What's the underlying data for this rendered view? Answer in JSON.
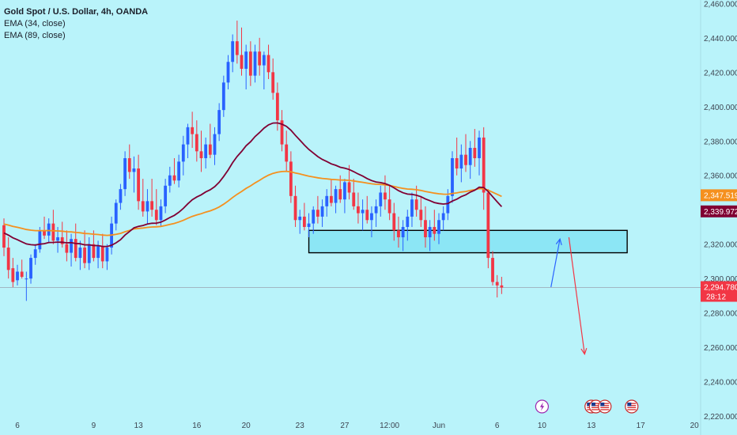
{
  "chart_data": {
    "type": "candlestick",
    "title": "Gold Spot / U.S. Dollar, 4h, OANDA",
    "indicators": [
      "EMA (34, close)",
      "EMA (89, close)"
    ],
    "colors": {
      "background": "#b9f3fa",
      "up": "#2962ff",
      "down": "#f23645",
      "ema34": "#800033",
      "ema89": "#f5901e",
      "zone_fill": "#8ce6f5",
      "price_line": "#9aa3b0"
    },
    "y_axis": {
      "range": [
        2209,
        2462
      ],
      "ticks": [
        "2,460.000",
        "2,440.000",
        "2,420.000",
        "2,400.000",
        "2,380.000",
        "2,360.000",
        "2,340.000",
        "2,320.000",
        "2,300.000",
        "2,280.000",
        "2,260.000",
        "2,240.000",
        "2,220.000"
      ]
    },
    "x_axis": {
      "ticks": [
        {
          "label": "6",
          "bar": 3
        },
        {
          "label": "9",
          "bar": 20
        },
        {
          "label": "13",
          "bar": 30
        },
        {
          "label": "16",
          "bar": 43
        },
        {
          "label": "20",
          "bar": 54
        },
        {
          "label": "23",
          "bar": 66
        },
        {
          "label": "27",
          "bar": 76
        },
        {
          "label": "12:00",
          "bar": 86
        },
        {
          "label": "Jun",
          "bar": 97
        },
        {
          "label": "6",
          "bar": 110
        },
        {
          "label": "10",
          "bar": 120
        },
        {
          "label": "13",
          "bar": 131
        },
        {
          "label": "17",
          "bar": 142
        },
        {
          "label": "20",
          "bar": 154
        }
      ]
    },
    "price_labels": [
      {
        "text": "2,347.519",
        "value": 2347.519,
        "color": "#f5901e"
      },
      {
        "text": "2,339.972",
        "value": 2339.972,
        "color": "#800033"
      },
      {
        "text": "2,294.780",
        "value": 2294.78,
        "color": "#f23645",
        "countdown": "28:12"
      }
    ],
    "zone": {
      "x_from_bar": 68,
      "x_to_bar": 139,
      "y_from": 2315,
      "y_to": 2328
    },
    "arrows": [
      {
        "from": [
          122,
          2295
        ],
        "to": [
          124,
          2323
        ],
        "color": "#2962ff"
      },
      {
        "from": [
          126,
          2324
        ],
        "to": [
          129.5,
          2256
        ],
        "color": "#f23645"
      }
    ],
    "events": [
      {
        "type": "lightning",
        "bar": 120
      },
      {
        "type": "us-flag",
        "bar": 131
      },
      {
        "type": "us-flag",
        "bar": 132
      },
      {
        "type": "us-flag",
        "bar": 134
      },
      {
        "type": "us-flag",
        "bar": 140
      }
    ],
    "candles": [
      [
        2331,
        2335,
        2313,
        2318
      ],
      [
        2318,
        2324,
        2300,
        2305
      ],
      [
        2306,
        2312,
        2295,
        2298
      ],
      [
        2299,
        2308,
        2296,
        2304
      ],
      [
        2304,
        2311,
        2300,
        2301
      ],
      [
        2300,
        2304,
        2287,
        2300
      ],
      [
        2300,
        2314,
        2297,
        2312
      ],
      [
        2312,
        2320,
        2308,
        2317
      ],
      [
        2317,
        2330,
        2315,
        2328
      ],
      [
        2328,
        2336,
        2323,
        2325
      ],
      [
        2325,
        2335,
        2321,
        2332
      ],
      [
        2332,
        2340,
        2320,
        2322
      ],
      [
        2322,
        2330,
        2315,
        2324
      ],
      [
        2324,
        2333,
        2318,
        2320
      ],
      [
        2320,
        2328,
        2310,
        2315
      ],
      [
        2315,
        2326,
        2307,
        2323
      ],
      [
        2323,
        2332,
        2310,
        2312
      ],
      [
        2312,
        2322,
        2305,
        2318
      ],
      [
        2318,
        2328,
        2306,
        2309
      ],
      [
        2309,
        2324,
        2305,
        2320
      ],
      [
        2320,
        2328,
        2310,
        2312
      ],
      [
        2312,
        2322,
        2306,
        2319
      ],
      [
        2319,
        2326,
        2306,
        2310
      ],
      [
        2310,
        2320,
        2305,
        2318
      ],
      [
        2318,
        2336,
        2314,
        2332
      ],
      [
        2332,
        2346,
        2328,
        2344
      ],
      [
        2344,
        2355,
        2340,
        2352
      ],
      [
        2352,
        2374,
        2348,
        2370
      ],
      [
        2370,
        2378,
        2358,
        2362
      ],
      [
        2362,
        2371,
        2350,
        2364
      ],
      [
        2364,
        2372,
        2340,
        2345
      ],
      [
        2345,
        2358,
        2336,
        2339
      ],
      [
        2339,
        2352,
        2332,
        2345
      ],
      [
        2345,
        2358,
        2336,
        2340
      ],
      [
        2340,
        2352,
        2331,
        2334
      ],
      [
        2334,
        2346,
        2330,
        2342
      ],
      [
        2342,
        2358,
        2338,
        2354
      ],
      [
        2354,
        2365,
        2350,
        2360
      ],
      [
        2360,
        2370,
        2355,
        2357
      ],
      [
        2357,
        2372,
        2353,
        2368
      ],
      [
        2368,
        2383,
        2360,
        2378
      ],
      [
        2378,
        2390,
        2370,
        2388
      ],
      [
        2388,
        2397,
        2376,
        2384
      ],
      [
        2384,
        2392,
        2368,
        2374
      ],
      [
        2374,
        2386,
        2362,
        2370
      ],
      [
        2370,
        2382,
        2364,
        2378
      ],
      [
        2378,
        2390,
        2370,
        2372
      ],
      [
        2372,
        2388,
        2366,
        2384
      ],
      [
        2384,
        2402,
        2380,
        2398
      ],
      [
        2398,
        2418,
        2394,
        2414
      ],
      [
        2414,
        2430,
        2410,
        2426
      ],
      [
        2426,
        2442,
        2420,
        2438
      ],
      [
        2438,
        2450,
        2425,
        2430
      ],
      [
        2430,
        2446,
        2418,
        2422
      ],
      [
        2422,
        2436,
        2410,
        2432
      ],
      [
        2432,
        2438,
        2412,
        2418
      ],
      [
        2418,
        2436,
        2414,
        2432
      ],
      [
        2432,
        2440,
        2418,
        2424
      ],
      [
        2424,
        2432,
        2410,
        2430
      ],
      [
        2430,
        2436,
        2416,
        2420
      ],
      [
        2420,
        2428,
        2404,
        2408
      ],
      [
        2408,
        2414,
        2386,
        2392
      ],
      [
        2392,
        2398,
        2374,
        2378
      ],
      [
        2378,
        2386,
        2362,
        2368
      ],
      [
        2368,
        2374,
        2344,
        2348
      ],
      [
        2348,
        2354,
        2330,
        2334
      ],
      [
        2334,
        2340,
        2326,
        2336
      ],
      [
        2336,
        2344,
        2328,
        2330
      ],
      [
        2330,
        2338,
        2324,
        2332
      ],
      [
        2332,
        2342,
        2326,
        2340
      ],
      [
        2340,
        2348,
        2332,
        2336
      ],
      [
        2336,
        2346,
        2330,
        2342
      ],
      [
        2342,
        2352,
        2336,
        2348
      ],
      [
        2348,
        2358,
        2342,
        2344
      ],
      [
        2344,
        2354,
        2338,
        2352
      ],
      [
        2352,
        2360,
        2344,
        2346
      ],
      [
        2346,
        2358,
        2338,
        2356
      ],
      [
        2356,
        2366,
        2346,
        2350
      ],
      [
        2350,
        2358,
        2340,
        2342
      ],
      [
        2342,
        2350,
        2332,
        2338
      ],
      [
        2338,
        2346,
        2328,
        2340
      ],
      [
        2340,
        2348,
        2332,
        2334
      ],
      [
        2334,
        2342,
        2324,
        2338
      ],
      [
        2338,
        2346,
        2330,
        2342
      ],
      [
        2342,
        2354,
        2336,
        2350
      ],
      [
        2350,
        2360,
        2340,
        2346
      ],
      [
        2346,
        2354,
        2334,
        2338
      ],
      [
        2338,
        2344,
        2322,
        2328
      ],
      [
        2328,
        2336,
        2318,
        2324
      ],
      [
        2324,
        2334,
        2316,
        2330
      ],
      [
        2330,
        2340,
        2322,
        2336
      ],
      [
        2336,
        2350,
        2330,
        2346
      ],
      [
        2346,
        2354,
        2336,
        2340
      ],
      [
        2340,
        2348,
        2330,
        2334
      ],
      [
        2334,
        2342,
        2318,
        2324
      ],
      [
        2324,
        2334,
        2316,
        2330
      ],
      [
        2330,
        2340,
        2322,
        2326
      ],
      [
        2326,
        2338,
        2320,
        2334
      ],
      [
        2334,
        2342,
        2328,
        2338
      ],
      [
        2338,
        2352,
        2334,
        2348
      ],
      [
        2348,
        2374,
        2344,
        2370
      ],
      [
        2370,
        2382,
        2360,
        2364
      ],
      [
        2364,
        2378,
        2356,
        2372
      ],
      [
        2372,
        2384,
        2362,
        2366
      ],
      [
        2366,
        2380,
        2358,
        2376
      ],
      [
        2376,
        2387,
        2365,
        2370
      ],
      [
        2370,
        2386,
        2360,
        2382
      ],
      [
        2382,
        2388,
        2340,
        2350
      ],
      [
        2350,
        2352,
        2306,
        2312
      ],
      [
        2312,
        2316,
        2296,
        2298
      ],
      [
        2298,
        2302,
        2289,
        2296
      ],
      [
        2296,
        2301,
        2291,
        2294.78
      ]
    ]
  }
}
